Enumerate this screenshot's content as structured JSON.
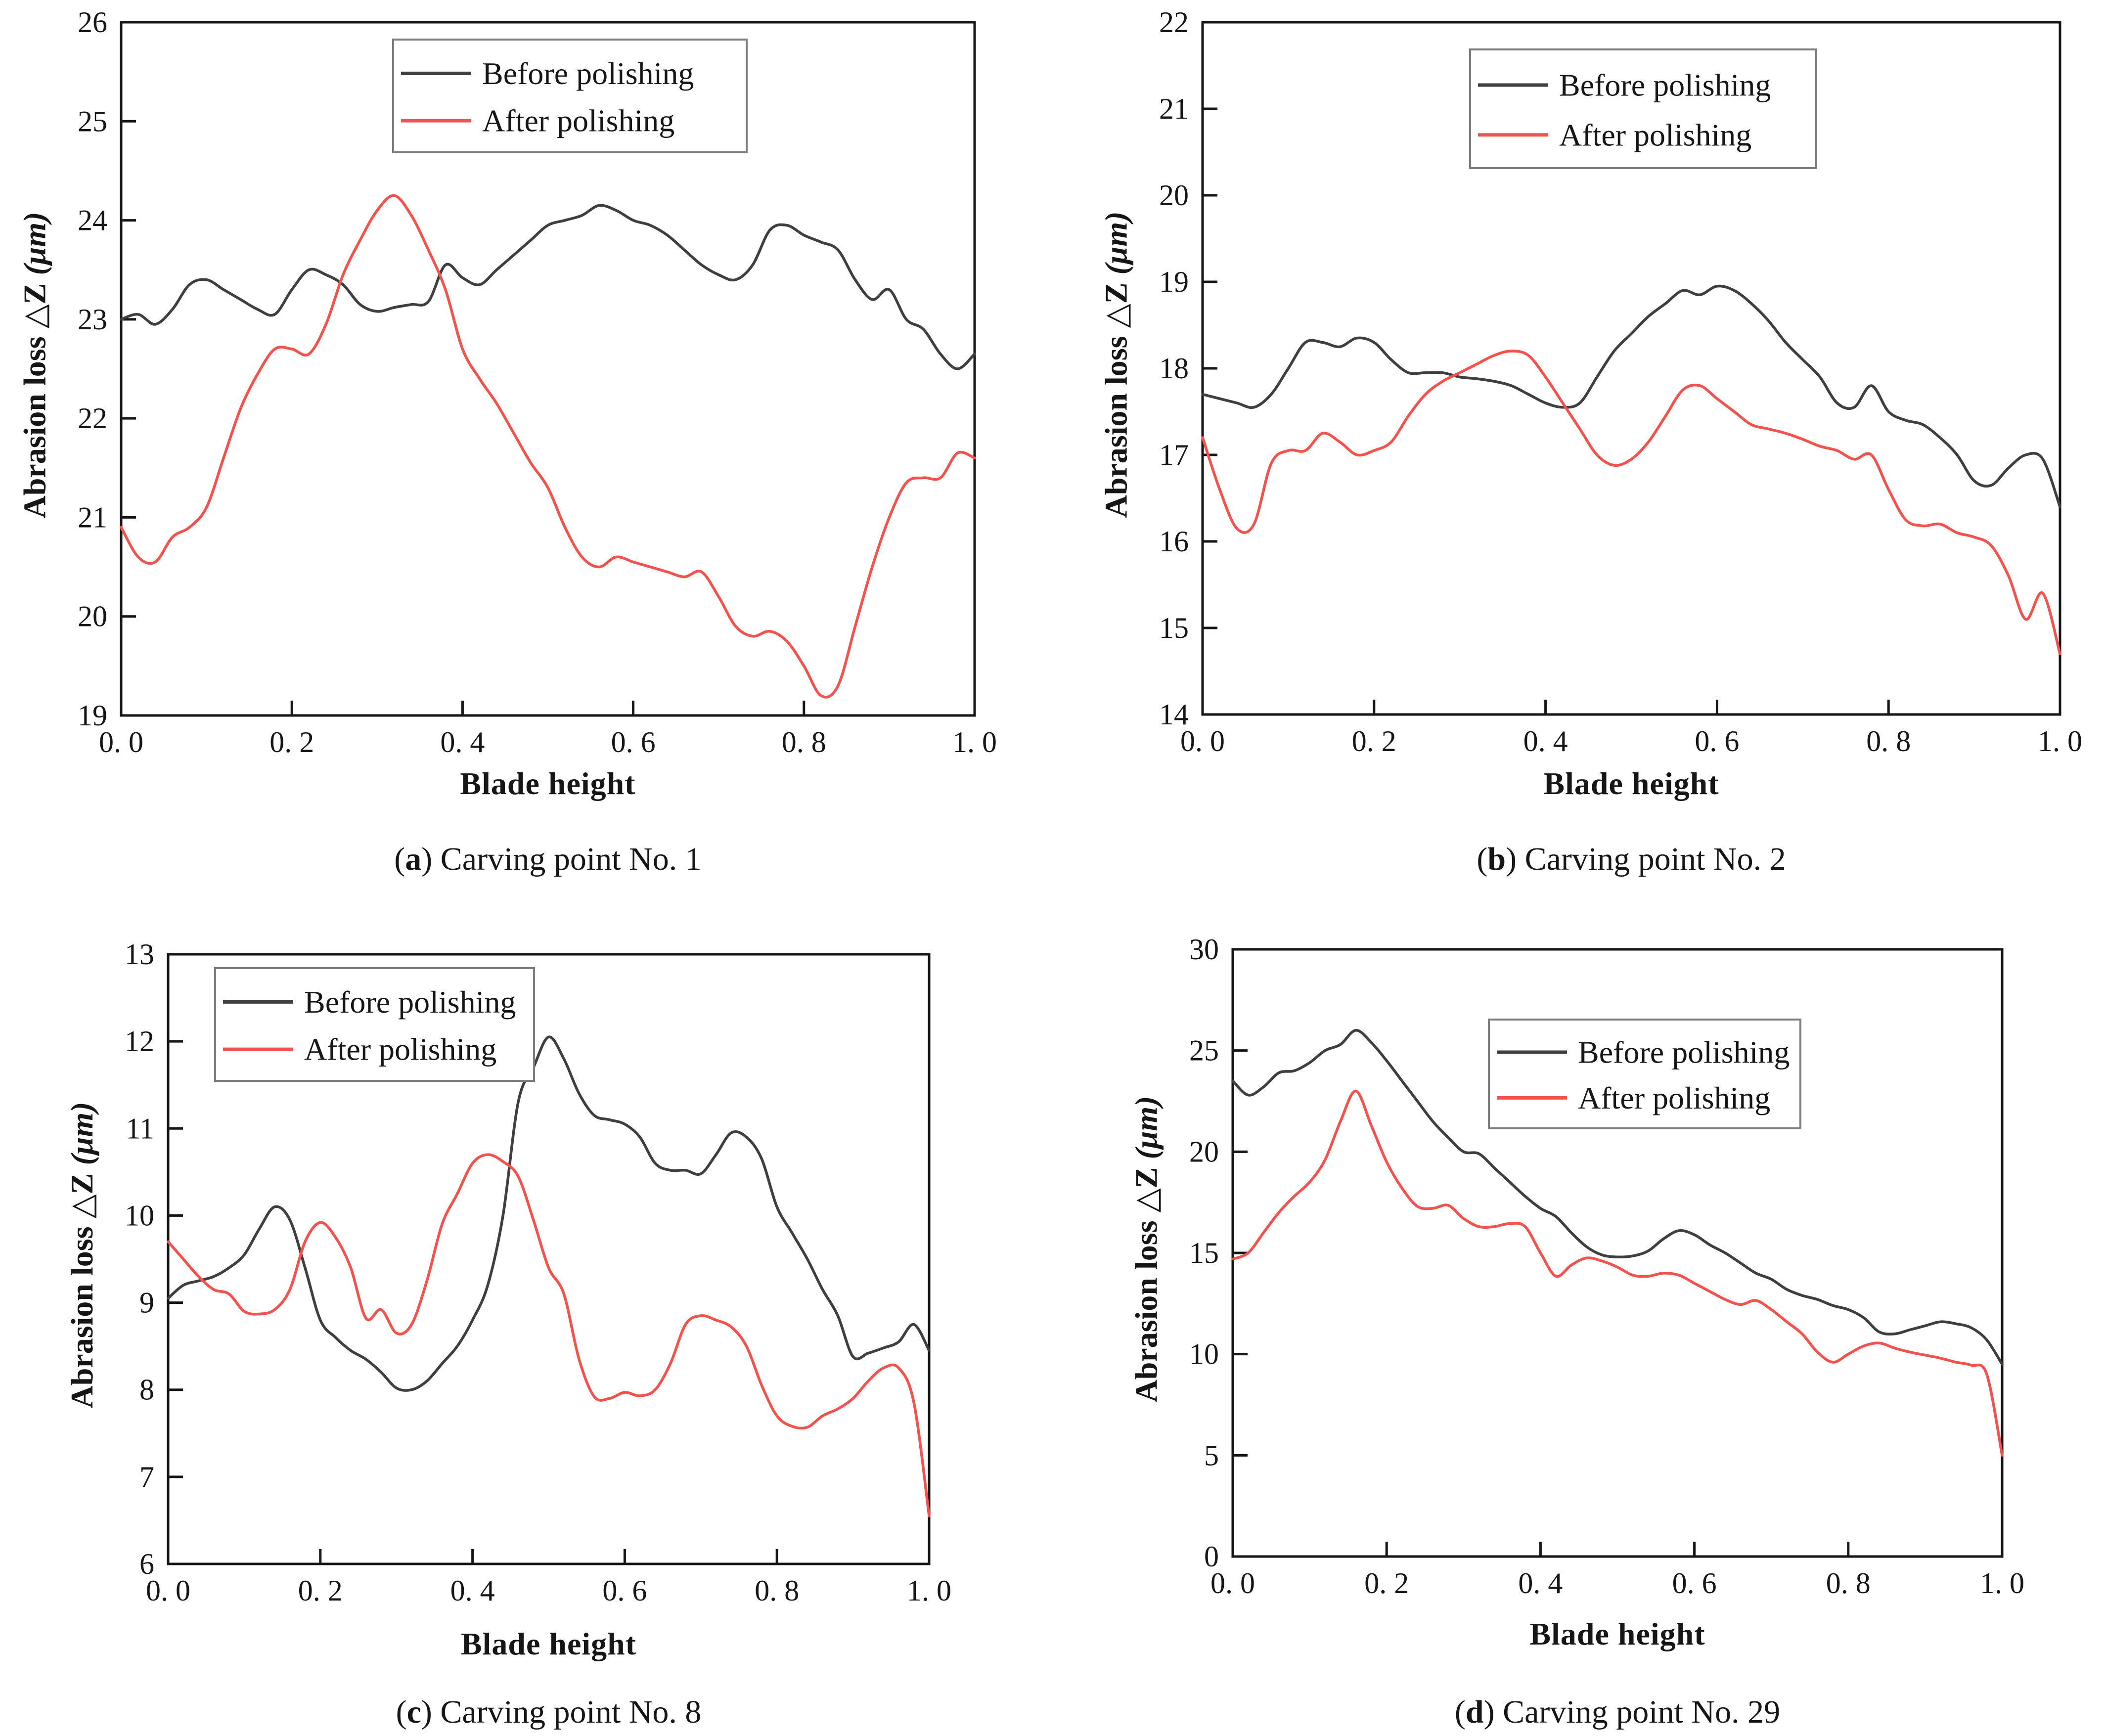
{
  "page": {
    "background": "#ffffff"
  },
  "chart_data": [
    {
      "id": "a",
      "type": "line",
      "caption": {
        "pre": "(",
        "letter": "a",
        "post": ") ",
        "text": "Carving point No. 1"
      },
      "xlabel": "Blade height",
      "ylabel_main": "Abrasion loss △Z ",
      "ylabel_unit": "(μm)",
      "xlim": [
        0,
        1
      ],
      "ylim": [
        19,
        26
      ],
      "xticks": [
        0,
        0.2,
        0.4,
        0.6,
        0.8,
        1.0
      ],
      "xtick_labels": [
        "0. 0",
        "0. 2",
        "0. 4",
        "0. 6",
        "0. 8",
        "1. 0"
      ],
      "yticks": [
        19,
        20,
        21,
        22,
        23,
        24,
        25,
        26
      ],
      "legend_position": "top-center",
      "grid": false,
      "x": [
        0,
        0.02,
        0.04,
        0.06,
        0.08,
        0.1,
        0.12,
        0.14,
        0.16,
        0.18,
        0.2,
        0.22,
        0.24,
        0.26,
        0.28,
        0.3,
        0.32,
        0.34,
        0.36,
        0.38,
        0.4,
        0.42,
        0.44,
        0.46,
        0.48,
        0.5,
        0.52,
        0.54,
        0.56,
        0.58,
        0.6,
        0.62,
        0.64,
        0.66,
        0.68,
        0.7,
        0.72,
        0.74,
        0.76,
        0.78,
        0.8,
        0.82,
        0.84,
        0.86,
        0.88,
        0.9,
        0.92,
        0.94,
        0.96,
        0.98,
        1
      ],
      "series": [
        {
          "name": "Before polishing",
          "color": "#3f3f3f",
          "y": [
            23.0,
            23.05,
            22.95,
            23.1,
            23.35,
            23.4,
            23.3,
            23.2,
            23.1,
            23.05,
            23.3,
            23.5,
            23.45,
            23.35,
            23.15,
            23.08,
            23.12,
            23.15,
            23.18,
            23.55,
            23.42,
            23.35,
            23.5,
            23.65,
            23.8,
            23.95,
            24.0,
            24.05,
            24.15,
            24.1,
            24.0,
            23.95,
            23.85,
            23.7,
            23.55,
            23.45,
            23.4,
            23.55,
            23.9,
            23.95,
            23.85,
            23.78,
            23.7,
            23.4,
            23.2,
            23.3,
            23.0,
            22.9,
            22.65,
            22.5,
            22.65
          ]
        },
        {
          "name": "After polishing",
          "color": "#f4524d",
          "y": [
            20.9,
            20.6,
            20.55,
            20.8,
            20.9,
            21.1,
            21.6,
            22.1,
            22.45,
            22.7,
            22.7,
            22.65,
            22.95,
            23.45,
            23.8,
            24.1,
            24.25,
            24.05,
            23.7,
            23.3,
            22.7,
            22.4,
            22.15,
            21.85,
            21.55,
            21.3,
            20.9,
            20.6,
            20.5,
            20.6,
            20.55,
            20.5,
            20.45,
            20.4,
            20.45,
            20.2,
            19.9,
            19.8,
            19.85,
            19.75,
            19.5,
            19.2,
            19.3,
            19.9,
            20.5,
            21.0,
            21.35,
            21.4,
            21.4,
            21.65,
            21.6
          ]
        }
      ]
    },
    {
      "id": "b",
      "type": "line",
      "caption": {
        "pre": "(",
        "letter": "b",
        "post": ") ",
        "text": "Carving point No. 2"
      },
      "xlabel": "Blade height",
      "ylabel_main": "Abrasion loss △Z ",
      "ylabel_unit": "(μm)",
      "xlim": [
        0,
        1
      ],
      "ylim": [
        14,
        22
      ],
      "xticks": [
        0,
        0.2,
        0.4,
        0.6,
        0.8,
        1.0
      ],
      "xtick_labels": [
        "0. 0",
        "0. 2",
        "0. 4",
        "0. 6",
        "0. 8",
        "1. 0"
      ],
      "yticks": [
        14,
        15,
        16,
        17,
        18,
        19,
        20,
        21,
        22
      ],
      "legend_position": "top-center",
      "grid": false,
      "x": [
        0,
        0.02,
        0.04,
        0.06,
        0.08,
        0.1,
        0.12,
        0.14,
        0.16,
        0.18,
        0.2,
        0.22,
        0.24,
        0.26,
        0.28,
        0.3,
        0.32,
        0.34,
        0.36,
        0.38,
        0.4,
        0.42,
        0.44,
        0.46,
        0.48,
        0.5,
        0.52,
        0.54,
        0.56,
        0.58,
        0.6,
        0.62,
        0.64,
        0.66,
        0.68,
        0.7,
        0.72,
        0.74,
        0.76,
        0.78,
        0.8,
        0.82,
        0.84,
        0.86,
        0.88,
        0.9,
        0.92,
        0.94,
        0.96,
        0.98,
        1
      ],
      "series": [
        {
          "name": "Before polishing",
          "color": "#3f3f3f",
          "y": [
            17.7,
            17.65,
            17.6,
            17.55,
            17.7,
            18.0,
            18.3,
            18.3,
            18.25,
            18.35,
            18.3,
            18.1,
            17.95,
            17.95,
            17.95,
            17.9,
            17.88,
            17.85,
            17.8,
            17.7,
            17.6,
            17.55,
            17.6,
            17.9,
            18.2,
            18.4,
            18.6,
            18.75,
            18.9,
            18.85,
            18.95,
            18.9,
            18.75,
            18.55,
            18.3,
            18.1,
            17.9,
            17.6,
            17.55,
            17.8,
            17.5,
            17.4,
            17.35,
            17.2,
            17.0,
            16.7,
            16.65,
            16.85,
            17.0,
            16.95,
            16.4
          ]
        },
        {
          "name": "After polishing",
          "color": "#f4524d",
          "y": [
            17.2,
            16.6,
            16.15,
            16.2,
            16.9,
            17.05,
            17.05,
            17.25,
            17.15,
            17.0,
            17.05,
            17.15,
            17.45,
            17.7,
            17.85,
            17.95,
            18.05,
            18.15,
            18.2,
            18.15,
            17.9,
            17.6,
            17.3,
            17.0,
            16.88,
            16.95,
            17.15,
            17.45,
            17.75,
            17.8,
            17.65,
            17.5,
            17.35,
            17.3,
            17.25,
            17.18,
            17.1,
            17.05,
            16.95,
            17.0,
            16.6,
            16.25,
            16.18,
            16.2,
            16.1,
            16.05,
            15.95,
            15.6,
            15.1,
            15.4,
            14.7
          ]
        }
      ]
    },
    {
      "id": "c",
      "type": "line",
      "caption": {
        "pre": "(",
        "letter": "c",
        "post": ") ",
        "text": "Carving point No. 8"
      },
      "xlabel": "Blade height",
      "ylabel_main": "Abrasion loss △Z ",
      "ylabel_unit": "(μm)",
      "xlim": [
        0,
        1
      ],
      "ylim": [
        6,
        13
      ],
      "xticks": [
        0,
        0.2,
        0.4,
        0.6,
        0.8,
        1.0
      ],
      "xtick_labels": [
        "0. 0",
        "0. 2",
        "0. 4",
        "0. 6",
        "0. 8",
        "1. 0"
      ],
      "yticks": [
        6,
        7,
        8,
        9,
        10,
        11,
        12,
        13
      ],
      "legend_position": "top-left",
      "grid": false,
      "x": [
        0,
        0.02,
        0.04,
        0.06,
        0.08,
        0.1,
        0.12,
        0.14,
        0.16,
        0.18,
        0.2,
        0.22,
        0.24,
        0.26,
        0.28,
        0.3,
        0.32,
        0.34,
        0.36,
        0.38,
        0.4,
        0.42,
        0.44,
        0.46,
        0.48,
        0.5,
        0.52,
        0.54,
        0.56,
        0.58,
        0.6,
        0.62,
        0.64,
        0.66,
        0.68,
        0.7,
        0.72,
        0.74,
        0.76,
        0.78,
        0.8,
        0.82,
        0.84,
        0.86,
        0.88,
        0.9,
        0.92,
        0.94,
        0.96,
        0.98,
        1
      ],
      "series": [
        {
          "name": "Before polishing",
          "color": "#3f3f3f",
          "y": [
            9.05,
            9.2,
            9.25,
            9.3,
            9.4,
            9.55,
            9.85,
            10.1,
            9.95,
            9.4,
            8.8,
            8.6,
            8.45,
            8.35,
            8.2,
            8.02,
            8.0,
            8.1,
            8.3,
            8.5,
            8.8,
            9.2,
            10.0,
            11.3,
            11.7,
            12.05,
            11.8,
            11.4,
            11.15,
            11.1,
            11.05,
            10.9,
            10.6,
            10.52,
            10.52,
            10.48,
            10.7,
            10.95,
            10.9,
            10.65,
            10.1,
            9.8,
            9.5,
            9.15,
            8.85,
            8.38,
            8.42,
            8.48,
            8.55,
            8.75,
            8.45
          ]
        },
        {
          "name": "After polishing",
          "color": "#f4524d",
          "y": [
            9.7,
            9.5,
            9.3,
            9.15,
            9.1,
            8.9,
            8.87,
            8.92,
            9.15,
            9.7,
            9.92,
            9.75,
            9.4,
            8.82,
            8.92,
            8.65,
            8.75,
            9.25,
            9.9,
            10.25,
            10.6,
            10.7,
            10.62,
            10.45,
            9.95,
            9.4,
            9.1,
            8.35,
            7.92,
            7.9,
            7.97,
            7.93,
            8.0,
            8.3,
            8.75,
            8.85,
            8.8,
            8.72,
            8.5,
            8.05,
            7.7,
            7.58,
            7.57,
            7.7,
            7.78,
            7.9,
            8.1,
            8.25,
            8.25,
            7.85,
            6.55
          ]
        }
      ]
    },
    {
      "id": "d",
      "type": "line",
      "caption": {
        "pre": "(",
        "letter": "d",
        "post": ") ",
        "text": "Carving point No. 29"
      },
      "xlabel": "Blade height",
      "ylabel_main": "Abrasion loss △Z ",
      "ylabel_unit": "(μm)",
      "xlim": [
        0,
        1
      ],
      "ylim": [
        0,
        30
      ],
      "xticks": [
        0,
        0.2,
        0.4,
        0.6,
        0.8,
        1.0
      ],
      "xtick_labels": [
        "0. 0",
        "0. 2",
        "0. 4",
        "0. 6",
        "0. 8",
        "1. 0"
      ],
      "yticks": [
        0,
        5,
        10,
        15,
        20,
        25,
        30
      ],
      "legend_position": "top-center",
      "grid": false,
      "x": [
        0,
        0.02,
        0.04,
        0.06,
        0.08,
        0.1,
        0.12,
        0.14,
        0.16,
        0.18,
        0.2,
        0.22,
        0.24,
        0.26,
        0.28,
        0.3,
        0.32,
        0.34,
        0.36,
        0.38,
        0.4,
        0.42,
        0.44,
        0.46,
        0.48,
        0.5,
        0.52,
        0.54,
        0.56,
        0.58,
        0.6,
        0.62,
        0.64,
        0.66,
        0.68,
        0.7,
        0.72,
        0.74,
        0.76,
        0.78,
        0.8,
        0.82,
        0.84,
        0.86,
        0.88,
        0.9,
        0.92,
        0.94,
        0.96,
        0.98,
        1
      ],
      "series": [
        {
          "name": "Before polishing",
          "color": "#3f3f3f",
          "y": [
            23.5,
            22.8,
            23.2,
            23.9,
            24.0,
            24.4,
            25.0,
            25.3,
            26.0,
            25.4,
            24.5,
            23.5,
            22.5,
            21.5,
            20.7,
            20.0,
            19.9,
            19.2,
            18.5,
            17.8,
            17.2,
            16.8,
            16.0,
            15.3,
            14.9,
            14.8,
            14.85,
            15.1,
            15.7,
            16.1,
            15.9,
            15.4,
            15.0,
            14.5,
            14.0,
            13.7,
            13.2,
            12.9,
            12.7,
            12.4,
            12.2,
            11.8,
            11.1,
            11.0,
            11.2,
            11.4,
            11.6,
            11.5,
            11.3,
            10.7,
            9.5
          ]
        },
        {
          "name": "After polishing",
          "color": "#f4524d",
          "y": [
            14.7,
            15.0,
            16.0,
            17.0,
            17.8,
            18.5,
            19.6,
            21.5,
            23.0,
            21.3,
            19.5,
            18.2,
            17.3,
            17.2,
            17.35,
            16.7,
            16.3,
            16.3,
            16.45,
            16.3,
            15.0,
            13.85,
            14.4,
            14.75,
            14.6,
            14.3,
            13.9,
            13.85,
            14.0,
            13.9,
            13.5,
            13.1,
            12.7,
            12.45,
            12.65,
            12.2,
            11.6,
            11.0,
            10.1,
            9.6,
            10.0,
            10.4,
            10.55,
            10.3,
            10.1,
            9.95,
            9.8,
            9.6,
            9.45,
            9.0,
            5.0
          ]
        }
      ]
    }
  ]
}
